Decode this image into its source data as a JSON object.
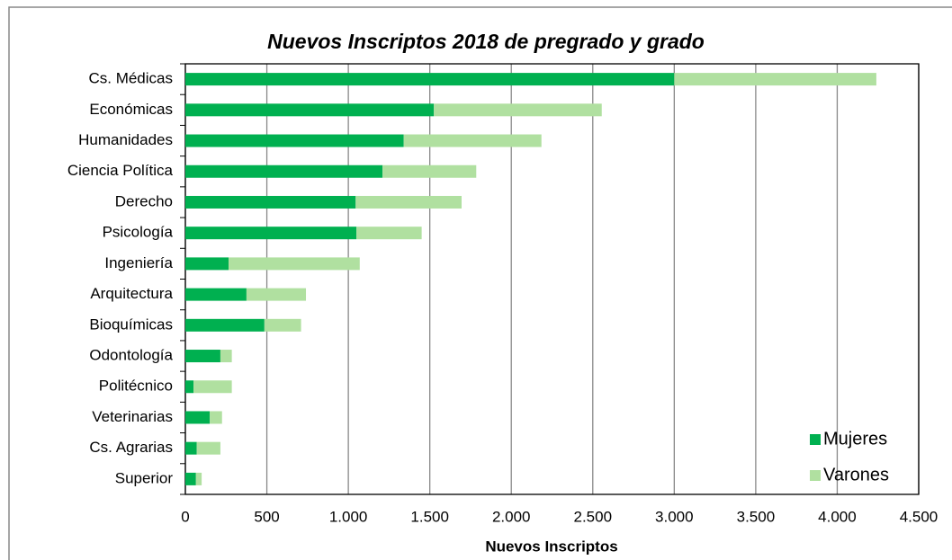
{
  "chart_data": {
    "type": "stacked-bar-horizontal",
    "title": "Nuevos Inscriptos 2018 de pregrado y grado",
    "x_label": "Nuevos Inscriptos",
    "categories": [
      "Cs. Médicas",
      "Económicas",
      "Humanidades",
      "Ciencia Política",
      "Derecho",
      "Psicología",
      "Ingeniería",
      "Arquitectura",
      "Bioquímicas",
      "Odontología",
      "Politécnico",
      "Veterinarias",
      "Cs. Agrarias",
      "Superior"
    ],
    "series": [
      {
        "name": "Mujeres",
        "color": "#00b050",
        "values": [
          3000,
          1525,
          1340,
          1210,
          1045,
          1050,
          265,
          375,
          485,
          215,
          50,
          150,
          70,
          65
        ]
      },
      {
        "name": "Varones",
        "color": "#b0e0a0",
        "values": [
          1240,
          1030,
          845,
          575,
          650,
          400,
          805,
          365,
          225,
          70,
          235,
          75,
          145,
          35
        ]
      }
    ],
    "xlim": [
      0,
      4500
    ],
    "xticks": [
      0,
      500,
      {
        "value": 1000,
        "label": "1.000"
      },
      {
        "value": 1500,
        "label": "1.500"
      },
      {
        "value": 2000,
        "label": "2.000"
      },
      {
        "value": 2500,
        "label": "2.500"
      },
      {
        "value": 3000,
        "label": "3.000"
      },
      {
        "value": 3500,
        "label": "3.500"
      },
      {
        "value": 4000,
        "label": "4.000"
      },
      {
        "value": 4500,
        "label": "4.500"
      }
    ],
    "grid": true,
    "legend": "lower right"
  }
}
